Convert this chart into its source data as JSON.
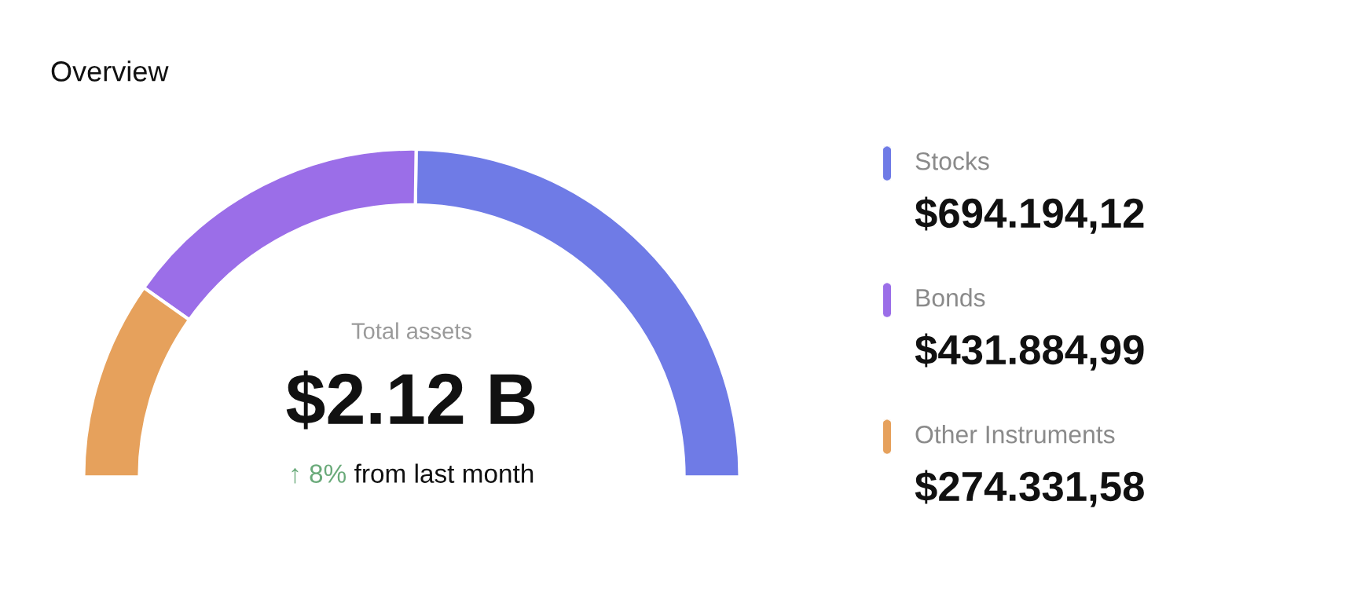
{
  "chart_data": {
    "type": "donut",
    "title": "Overview",
    "categories": [
      "Stocks",
      "Bonds",
      "Other Instruments"
    ],
    "values": [
      694194.12,
      431884.99,
      274331.58
    ],
    "colors": [
      "#6f7be6",
      "#9b6ee8",
      "#e6a15c"
    ],
    "value_labels": [
      "$694.194,12",
      "$431.884,99",
      "$274.331,58"
    ],
    "legend": "right",
    "annotations": [
      "Total assets",
      "$2.12 B",
      "↑ 8%",
      "from last month"
    ]
  }
}
